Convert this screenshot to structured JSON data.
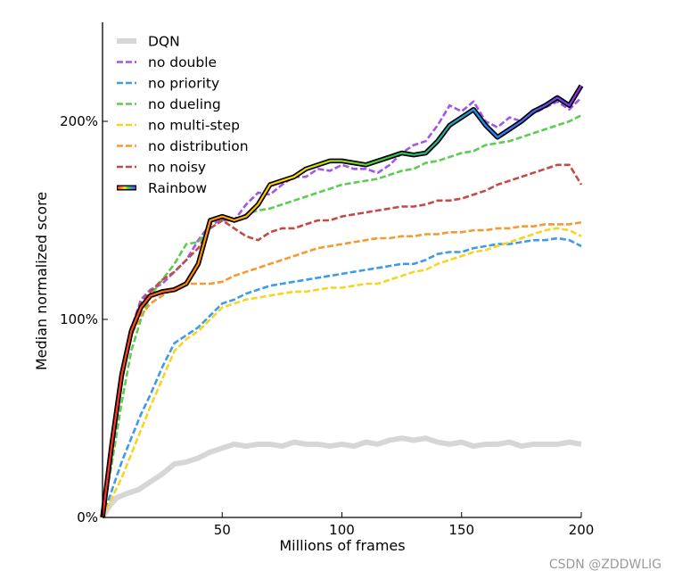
{
  "watermark": "CSDN @ZDDWLIG",
  "chart_data": {
    "type": "line",
    "title": "",
    "xlabel": "Millions of frames",
    "ylabel": "Median normalized score",
    "xlim": [
      0,
      200
    ],
    "ylim": [
      0,
      250
    ],
    "xticks": [
      50,
      100,
      150,
      200
    ],
    "yticks": [
      0,
      100,
      200
    ],
    "ytick_labels": [
      "0%",
      "100%",
      "200%"
    ],
    "grid": false,
    "legend_position": "top-left",
    "series": [
      {
        "name": "DQN",
        "color": "#d6d6d6",
        "dash": "solid",
        "width": 6,
        "x": [
          0,
          3,
          6,
          10,
          15,
          20,
          25,
          30,
          35,
          40,
          45,
          50,
          55,
          60,
          65,
          70,
          75,
          80,
          85,
          90,
          95,
          100,
          105,
          110,
          115,
          120,
          125,
          130,
          135,
          140,
          145,
          150,
          155,
          160,
          165,
          170,
          175,
          180,
          185,
          190,
          195,
          200
        ],
        "y": [
          0,
          6,
          10,
          12,
          14,
          18,
          22,
          27,
          28,
          30,
          33,
          35,
          37,
          36,
          37,
          37,
          36,
          38,
          37,
          37,
          36,
          37,
          36,
          38,
          37,
          39,
          40,
          39,
          40,
          38,
          37,
          38,
          36,
          37,
          37,
          38,
          36,
          37,
          37,
          37,
          38,
          37
        ]
      },
      {
        "name": "no double",
        "color": "#a155ea",
        "dash": "dashed",
        "width": 2.6,
        "x": [
          0,
          4,
          8,
          12,
          16,
          20,
          25,
          30,
          35,
          40,
          45,
          50,
          55,
          60,
          65,
          70,
          75,
          80,
          85,
          90,
          95,
          100,
          105,
          110,
          115,
          120,
          125,
          130,
          135,
          140,
          145,
          150,
          155,
          160,
          165,
          170,
          175,
          180,
          185,
          190,
          195,
          200
        ],
        "y": [
          0,
          32,
          68,
          95,
          110,
          115,
          118,
          124,
          130,
          140,
          148,
          150,
          150,
          158,
          164,
          163,
          168,
          172,
          172,
          176,
          175,
          178,
          176,
          176,
          174,
          178,
          184,
          188,
          190,
          198,
          208,
          205,
          210,
          200,
          197,
          202,
          200,
          204,
          207,
          210,
          206,
          212
        ]
      },
      {
        "name": "no priority",
        "color": "#3f9be8",
        "dash": "dashed",
        "width": 2.6,
        "x": [
          0,
          4,
          8,
          12,
          16,
          20,
          25,
          30,
          35,
          40,
          45,
          50,
          55,
          60,
          65,
          70,
          75,
          80,
          85,
          90,
          95,
          100,
          105,
          110,
          115,
          120,
          125,
          130,
          135,
          140,
          145,
          150,
          155,
          160,
          165,
          170,
          175,
          180,
          185,
          190,
          195,
          200
        ],
        "y": [
          0,
          14,
          28,
          40,
          52,
          62,
          76,
          88,
          92,
          96,
          102,
          108,
          110,
          113,
          115,
          117,
          118,
          119,
          120,
          121,
          122,
          123,
          124,
          125,
          126,
          127,
          128,
          128,
          130,
          133,
          134,
          134,
          136,
          137,
          138,
          138,
          139,
          140,
          140,
          141,
          140,
          137
        ]
      },
      {
        "name": "no dueling",
        "color": "#5dcc52",
        "dash": "dashed",
        "width": 2.6,
        "x": [
          0,
          4,
          8,
          12,
          16,
          20,
          25,
          30,
          35,
          40,
          45,
          50,
          55,
          60,
          65,
          70,
          75,
          80,
          85,
          90,
          95,
          100,
          105,
          110,
          115,
          120,
          125,
          130,
          135,
          140,
          145,
          150,
          155,
          160,
          165,
          170,
          175,
          180,
          185,
          190,
          195,
          200
        ],
        "y": [
          0,
          28,
          58,
          84,
          100,
          112,
          120,
          128,
          138,
          139,
          146,
          150,
          150,
          153,
          155,
          156,
          158,
          160,
          162,
          164,
          166,
          168,
          169,
          170,
          171,
          173,
          175,
          176,
          179,
          180,
          182,
          184,
          185,
          188,
          189,
          190,
          192,
          194,
          196,
          198,
          200,
          203
        ]
      },
      {
        "name": "no multi-step",
        "color": "#f5d422",
        "dash": "dashed",
        "width": 2.6,
        "x": [
          0,
          4,
          8,
          12,
          16,
          20,
          25,
          30,
          35,
          40,
          45,
          50,
          55,
          60,
          65,
          70,
          75,
          80,
          85,
          90,
          95,
          100,
          105,
          110,
          115,
          120,
          125,
          130,
          135,
          140,
          145,
          150,
          155,
          160,
          165,
          170,
          175,
          180,
          185,
          190,
          195,
          200
        ],
        "y": [
          0,
          10,
          20,
          32,
          44,
          56,
          70,
          84,
          90,
          94,
          100,
          106,
          108,
          110,
          111,
          112,
          113,
          114,
          114,
          115,
          116,
          116,
          117,
          118,
          118,
          120,
          122,
          124,
          125,
          128,
          130,
          132,
          134,
          135,
          137,
          139,
          141,
          143,
          145,
          146,
          145,
          142
        ]
      },
      {
        "name": "no distribution",
        "color": "#f49a2f",
        "dash": "dashed",
        "width": 2.6,
        "x": [
          0,
          4,
          8,
          12,
          16,
          20,
          25,
          30,
          35,
          40,
          45,
          50,
          55,
          60,
          65,
          70,
          75,
          80,
          85,
          90,
          95,
          100,
          105,
          110,
          115,
          120,
          125,
          130,
          135,
          140,
          145,
          150,
          155,
          160,
          165,
          170,
          175,
          180,
          185,
          190,
          195,
          200
        ],
        "y": [
          0,
          40,
          70,
          92,
          102,
          108,
          112,
          116,
          118,
          118,
          118,
          119,
          122,
          124,
          126,
          128,
          130,
          132,
          134,
          136,
          137,
          138,
          139,
          140,
          141,
          141,
          142,
          142,
          143,
          143,
          144,
          144,
          145,
          145,
          146,
          146,
          147,
          147,
          148,
          148,
          148,
          149
        ]
      },
      {
        "name": "no noisy",
        "color": "#c24b45",
        "dash": "dashed",
        "width": 2.6,
        "x": [
          0,
          4,
          8,
          12,
          16,
          20,
          25,
          30,
          35,
          40,
          45,
          50,
          55,
          60,
          65,
          70,
          75,
          80,
          85,
          90,
          95,
          100,
          105,
          110,
          115,
          120,
          125,
          130,
          135,
          140,
          145,
          150,
          155,
          160,
          165,
          170,
          175,
          180,
          185,
          190,
          195,
          200
        ],
        "y": [
          0,
          36,
          72,
          96,
          108,
          114,
          120,
          124,
          130,
          136,
          146,
          150,
          146,
          142,
          140,
          144,
          146,
          146,
          148,
          150,
          150,
          152,
          153,
          154,
          155,
          156,
          157,
          157,
          158,
          160,
          160,
          161,
          163,
          165,
          168,
          170,
          172,
          174,
          176,
          178,
          178,
          168
        ]
      },
      {
        "name": "Rainbow",
        "color": "#000000",
        "dash": "solid",
        "width": 4,
        "gradient": [
          "#ff2a2a",
          "#ff8c00",
          "#ffe000",
          "#2ecc40",
          "#1e90ff",
          "#8a2be2"
        ],
        "x": [
          0,
          4,
          8,
          12,
          16,
          20,
          25,
          30,
          35,
          40,
          45,
          50,
          55,
          60,
          65,
          70,
          75,
          80,
          85,
          90,
          95,
          100,
          105,
          110,
          115,
          120,
          125,
          130,
          135,
          140,
          145,
          150,
          155,
          160,
          165,
          170,
          175,
          180,
          185,
          190,
          195,
          200
        ],
        "y": [
          0,
          38,
          72,
          94,
          106,
          112,
          114,
          115,
          118,
          128,
          150,
          152,
          150,
          152,
          158,
          168,
          170,
          172,
          176,
          178,
          180,
          180,
          179,
          178,
          180,
          182,
          184,
          183,
          184,
          190,
          198,
          202,
          206,
          198,
          192,
          196,
          200,
          205,
          208,
          212,
          208,
          218
        ]
      }
    ]
  }
}
